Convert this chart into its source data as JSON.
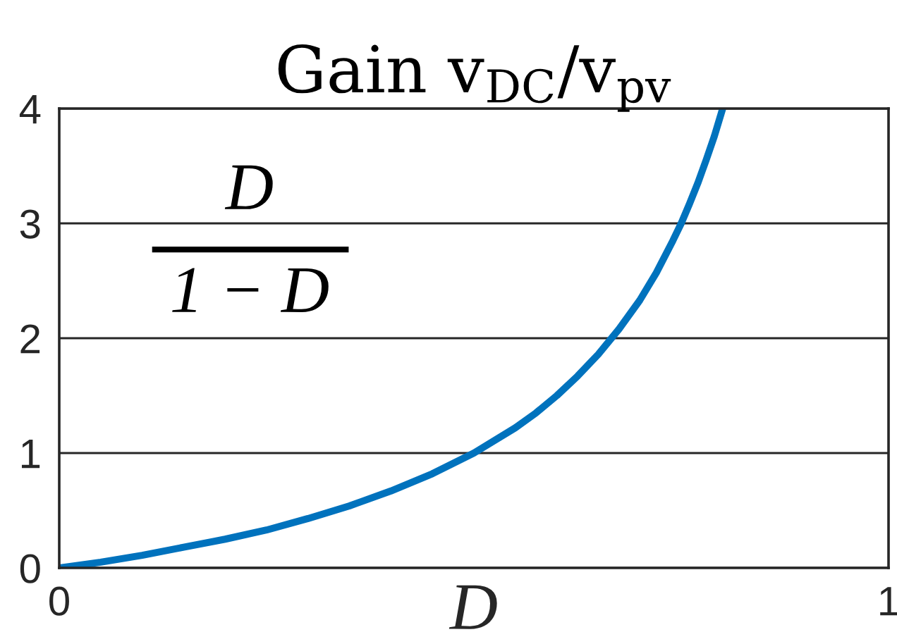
{
  "chart_data": {
    "type": "line",
    "title": "Gain v$_{DC}$/v$_{pv}$",
    "xlabel": "D",
    "annotations": [
      "D",
      "1 − D"
    ],
    "x": [
      0,
      0.05,
      0.1,
      0.15,
      0.2,
      0.25,
      0.3,
      0.35,
      0.4,
      0.45,
      0.5,
      0.55,
      0.575,
      0.6,
      0.625,
      0.65,
      0.675,
      0.7,
      0.72,
      0.74,
      0.75,
      0.76,
      0.77,
      0.78,
      0.79,
      0.8
    ],
    "series": [
      {
        "color": "#0072bd",
        "values": [
          0,
          0.05,
          0.11,
          0.18,
          0.25,
          0.33,
          0.43,
          0.54,
          0.67,
          0.82,
          1,
          1.22,
          1.35,
          1.5,
          1.67,
          1.86,
          2.08,
          2.33,
          2.57,
          2.85,
          3,
          3.17,
          3.35,
          3.55,
          3.76,
          4
        ]
      }
    ],
    "xlim": [
      0,
      1
    ],
    "ylim": [
      0,
      4
    ],
    "xticks": [
      0,
      1
    ],
    "yticks": [
      0,
      1,
      2,
      3,
      4
    ],
    "grid": "y",
    "line_style": "solid"
  }
}
